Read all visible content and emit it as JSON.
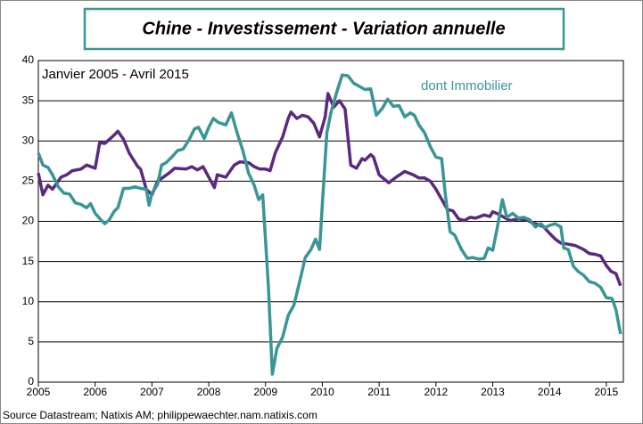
{
  "chart_data": {
    "type": "line",
    "title": "Chine - Investissement  - Variation annuelle",
    "subtitle": "Janvier 2005 - Avril 2015",
    "source": "Source Datastream; Natixis AM; philippewaechter.nam.natixis.com",
    "xlim": [
      2005,
      2015.3
    ],
    "xticks": [
      2005,
      2006,
      2007,
      2008,
      2009,
      2010,
      2011,
      2012,
      2013,
      2014,
      2015
    ],
    "ylim": [
      0,
      40
    ],
    "yticks": [
      0,
      5,
      10,
      15,
      20,
      25,
      30,
      35,
      40
    ],
    "grid": true,
    "series": [
      {
        "color": "#5b2a7e",
        "x": [
          2005.0,
          2005.08,
          2005.17,
          2005.25,
          2005.4,
          2005.5,
          2005.6,
          2005.75,
          2005.85,
          2006.0,
          2006.08,
          2006.17,
          2006.3,
          2006.4,
          2006.5,
          2006.6,
          2006.75,
          2006.8,
          2006.9,
          2007.0,
          2007.1,
          2007.2,
          2007.3,
          2007.4,
          2007.6,
          2007.7,
          2007.8,
          2007.9,
          2008.0,
          2008.1,
          2008.15,
          2008.3,
          2008.45,
          2008.55,
          2008.7,
          2008.8,
          2008.9,
          2009.0,
          2009.08,
          2009.17,
          2009.3,
          2009.4,
          2009.45,
          2009.55,
          2009.65,
          2009.75,
          2009.85,
          2009.95,
          2010.05,
          2010.1,
          2010.2,
          2010.3,
          2010.4,
          2010.5,
          2010.6,
          2010.7,
          2010.75,
          2010.85,
          2010.9,
          2011.0,
          2011.1,
          2011.17,
          2011.3,
          2011.45,
          2011.6,
          2011.7,
          2011.8,
          2011.9,
          2012.0,
          2012.08,
          2012.2,
          2012.3,
          2012.4,
          2012.5,
          2012.6,
          2012.7,
          2012.85,
          2012.95,
          2013.0,
          2013.1,
          2013.2,
          2013.3,
          2013.45,
          2013.6,
          2013.7,
          2013.8,
          2013.9,
          2014.0,
          2014.1,
          2014.2,
          2014.3,
          2014.45,
          2014.6,
          2014.7,
          2014.8,
          2014.9,
          2015.0,
          2015.08,
          2015.17,
          2015.25
        ],
        "values": [
          26,
          23.3,
          24.5,
          24,
          25.5,
          25.8,
          26.3,
          26.5,
          27,
          26.6,
          29.8,
          29.7,
          30.5,
          31.2,
          30.2,
          28.5,
          26.8,
          26.5,
          24,
          23.3,
          25,
          25.5,
          26,
          26.6,
          26.5,
          26.8,
          26.4,
          26.8,
          25.5,
          24.2,
          25.8,
          25.5,
          27,
          27.4,
          27.3,
          26.8,
          26.5,
          26.5,
          26.3,
          28.5,
          30.5,
          32.8,
          33.6,
          32.8,
          33.2,
          33,
          32.2,
          30.5,
          33,
          35.9,
          34.2,
          35,
          34,
          27,
          26.6,
          27.8,
          27.6,
          28.3,
          28,
          25.8,
          25.2,
          24.8,
          25.5,
          26.2,
          25.8,
          25.4,
          25.4,
          25,
          24,
          23,
          21.5,
          21.3,
          20.3,
          20.1,
          20.5,
          20.4,
          20.8,
          20.6,
          21.2,
          20.9,
          20.5,
          20.1,
          20.3,
          20.2,
          19.8,
          19.6,
          19.3,
          18.5,
          17.8,
          17.3,
          17.2,
          17,
          16.5,
          16,
          15.9,
          15.7,
          14.5,
          13.8,
          13.5,
          12
        ]
      },
      {
        "name": "dont Immobilier",
        "color": "#3a9595",
        "x": [
          2005.0,
          2005.08,
          2005.17,
          2005.25,
          2005.35,
          2005.45,
          2005.55,
          2005.65,
          2005.75,
          2005.85,
          2005.92,
          2006.0,
          2006.1,
          2006.17,
          2006.25,
          2006.33,
          2006.4,
          2006.5,
          2006.6,
          2006.7,
          2006.8,
          2006.9,
          2006.95,
          2007.0,
          2007.1,
          2007.17,
          2007.25,
          2007.35,
          2007.45,
          2007.55,
          2007.65,
          2007.75,
          2007.82,
          2007.92,
          2008.0,
          2008.08,
          2008.17,
          2008.3,
          2008.4,
          2008.5,
          2008.6,
          2008.7,
          2008.8,
          2008.88,
          2008.95,
          2009.05,
          2009.12,
          2009.2,
          2009.3,
          2009.4,
          2009.5,
          2009.6,
          2009.7,
          2009.8,
          2009.88,
          2009.95,
          2010.0,
          2010.08,
          2010.15,
          2010.25,
          2010.35,
          2010.45,
          2010.55,
          2010.65,
          2010.75,
          2010.85,
          2010.95,
          2011.05,
          2011.15,
          2011.25,
          2011.35,
          2011.45,
          2011.55,
          2011.62,
          2011.7,
          2011.8,
          2011.9,
          2012.0,
          2012.1,
          2012.17,
          2012.25,
          2012.33,
          2012.45,
          2012.55,
          2012.65,
          2012.75,
          2012.85,
          2012.92,
          2013.0,
          2013.08,
          2013.17,
          2013.25,
          2013.35,
          2013.45,
          2013.55,
          2013.65,
          2013.75,
          2013.85,
          2013.92,
          2014.0,
          2014.1,
          2014.2,
          2014.25,
          2014.33,
          2014.42,
          2014.5,
          2014.6,
          2014.7,
          2014.8,
          2014.9,
          2015.0,
          2015.1,
          2015.17,
          2015.25
        ],
        "values": [
          28.5,
          27,
          26.7,
          25.8,
          24.3,
          23.5,
          23.4,
          22.3,
          22.1,
          21.7,
          22.2,
          21,
          20.2,
          19.7,
          20.2,
          21.2,
          21.7,
          24.1,
          24.1,
          24.3,
          24.1,
          24,
          22,
          23.5,
          24.6,
          27,
          27.3,
          28,
          28.8,
          29,
          30.1,
          31.5,
          31.7,
          30.3,
          31.7,
          32.8,
          32.3,
          32,
          33.5,
          31,
          28.8,
          26,
          24.5,
          22.7,
          23.3,
          12,
          1,
          4.2,
          5.6,
          8.3,
          9.6,
          12.5,
          15.5,
          16.5,
          17.8,
          16.5,
          22,
          31,
          33.5,
          36,
          38.2,
          38.1,
          37.2,
          36.8,
          36.4,
          36.5,
          33.2,
          34,
          35.2,
          34.3,
          34.4,
          33,
          33.5,
          33.2,
          32,
          31,
          29.3,
          28,
          27.8,
          23,
          18.7,
          18.3,
          16.5,
          15.4,
          15.5,
          15.3,
          15.4,
          16.7,
          16.4,
          19.2,
          22.7,
          20.5,
          21,
          20.4,
          20.5,
          20.2,
          19.3,
          19.7,
          19.2,
          19.5,
          19.7,
          19.3,
          16.7,
          16.5,
          14.4,
          13.8,
          13.3,
          12.5,
          12.3,
          11.8,
          10.5,
          10.4,
          9,
          6
        ]
      }
    ]
  }
}
